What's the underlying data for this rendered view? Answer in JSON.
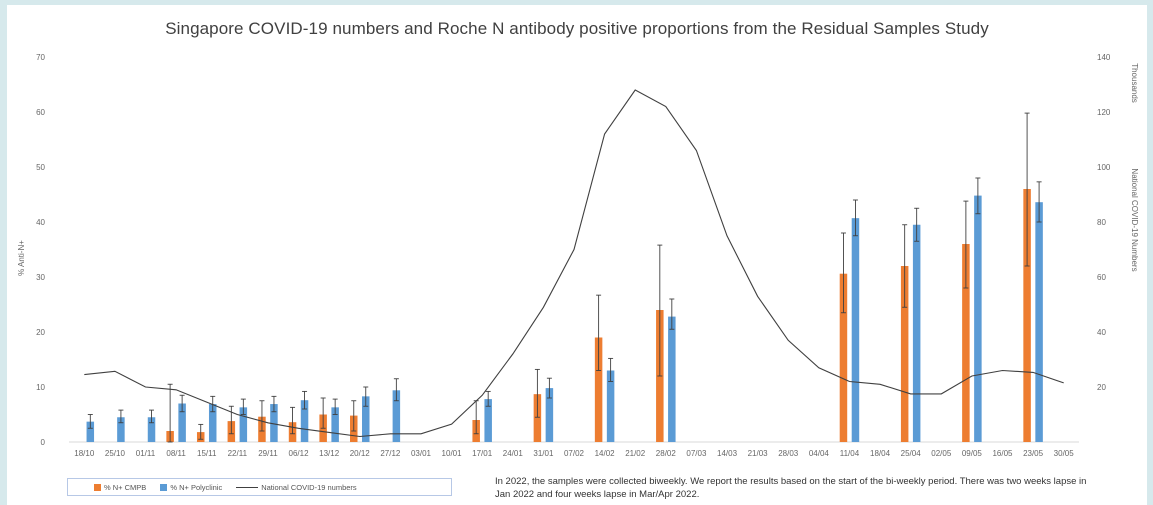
{
  "chart_data": {
    "type": "bar",
    "title": "Singapore COVID-19 numbers and Roche N antibody positive proportions from the Residual Samples Study",
    "ylabel": "% Anti-N+",
    "y2label": "National COVID-19 Numbers",
    "y2unit": "Thousands",
    "ylim": [
      0,
      70
    ],
    "y2lim": [
      0,
      140
    ],
    "yticks": [
      "0",
      "10",
      "20",
      "30",
      "40",
      "50",
      "60",
      "70"
    ],
    "y2ticks": [
      "",
      "20",
      "40",
      "60",
      "80",
      "100",
      "120",
      "140"
    ],
    "grid": false,
    "legend_position": "bottom-left",
    "categories": [
      "18/10",
      "25/10",
      "01/11",
      "08/11",
      "15/11",
      "22/11",
      "29/11",
      "06/12",
      "13/12",
      "20/12",
      "27/12",
      "03/01",
      "10/01",
      "17/01",
      "24/01",
      "31/01",
      "07/02",
      "14/02",
      "21/02",
      "28/02",
      "07/03",
      "14/03",
      "21/03",
      "28/03",
      "04/04",
      "11/04",
      "18/04",
      "25/04",
      "02/05",
      "09/05",
      "16/05",
      "23/05",
      "30/05"
    ],
    "series": [
      {
        "name": "% N+ CMPB",
        "type": "bar",
        "color": "#ed7d31",
        "values": [
          null,
          null,
          null,
          2,
          1.8,
          3.8,
          4.6,
          3.6,
          5,
          4.8,
          null,
          null,
          null,
          4,
          null,
          8.7,
          null,
          19,
          null,
          24,
          null,
          null,
          null,
          null,
          null,
          30.6,
          null,
          32,
          null,
          36,
          null,
          46,
          null
        ],
        "error_low": [
          null,
          null,
          null,
          0,
          0.5,
          1.5,
          2,
          1.5,
          2.5,
          2,
          null,
          null,
          null,
          1.5,
          null,
          4.5,
          null,
          13,
          null,
          12,
          null,
          null,
          null,
          null,
          null,
          23.5,
          null,
          24.5,
          null,
          28,
          null,
          32,
          null
        ],
        "error_high": [
          null,
          null,
          null,
          10.5,
          3.2,
          6.5,
          7.5,
          6.3,
          8,
          7.5,
          null,
          null,
          null,
          7.5,
          null,
          13.2,
          null,
          26.7,
          null,
          35.8,
          null,
          null,
          null,
          null,
          null,
          38,
          null,
          39.5,
          null,
          43.8,
          null,
          59.8,
          null
        ]
      },
      {
        "name": "% N+ Polyclinic",
        "type": "bar",
        "color": "#5b9bd5",
        "values": [
          3.7,
          4.5,
          4.5,
          7,
          6.9,
          6.3,
          6.9,
          7.6,
          6.3,
          8.3,
          9.4,
          null,
          null,
          7.8,
          null,
          9.8,
          null,
          13,
          null,
          22.8,
          null,
          null,
          null,
          null,
          null,
          40.7,
          null,
          39.5,
          null,
          44.8,
          null,
          43.6,
          null
        ],
        "error_low": [
          2.5,
          3.5,
          3.5,
          5.5,
          5.5,
          5,
          5.5,
          6,
          5,
          6.5,
          7.5,
          null,
          null,
          6.5,
          null,
          8,
          null,
          11,
          null,
          20.5,
          null,
          null,
          null,
          null,
          null,
          37.5,
          null,
          36.5,
          null,
          41.5,
          null,
          40,
          null
        ],
        "error_high": [
          5,
          5.8,
          5.8,
          8.5,
          8.3,
          7.8,
          8.3,
          9.2,
          7.8,
          10,
          11.5,
          null,
          null,
          9.2,
          null,
          11.6,
          null,
          15.2,
          null,
          26,
          null,
          null,
          null,
          null,
          null,
          44,
          null,
          42.5,
          null,
          48,
          null,
          47.3,
          null
        ]
      },
      {
        "name": "National COVID-19 numbers",
        "type": "line",
        "color": "#404040",
        "axis": "right",
        "values": [
          24.5,
          25.7,
          20,
          19,
          14.5,
          10,
          7,
          5,
          3.5,
          2,
          3,
          3,
          6.5,
          17,
          32,
          49,
          70,
          112,
          128,
          122,
          106,
          75,
          53,
          37,
          27,
          22,
          21,
          17.5,
          17.5,
          24,
          26,
          25.3,
          21.5
        ]
      }
    ]
  },
  "note": "In 2022, the samples were collected biweekly. We report the results based on the start of the bi-weekly period. There was two weeks lapse in Jan 2022 and four weeks lapse in Mar/Apr 2022."
}
